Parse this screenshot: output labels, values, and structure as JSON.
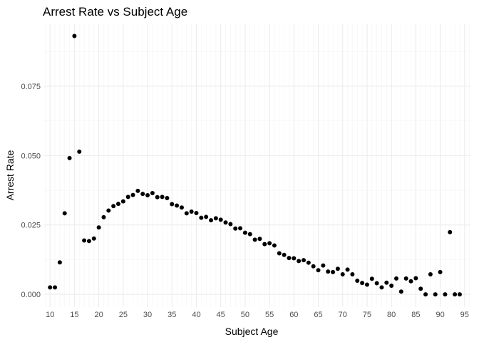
{
  "chart_data": {
    "type": "scatter",
    "title": "Arrest Rate vs Subject Age",
    "xlabel": "Subject Age",
    "ylabel": "Arrest Rate",
    "xlim": [
      8.8,
      96.2
    ],
    "ylim": [
      -0.0046,
      0.0976
    ],
    "x_ticks": [
      10,
      15,
      20,
      25,
      30,
      35,
      40,
      45,
      50,
      55,
      60,
      65,
      70,
      75,
      80,
      85,
      90,
      95
    ],
    "x_tick_labels": [
      "10",
      "15",
      "20",
      "25",
      "30",
      "35",
      "40",
      "45",
      "50",
      "55",
      "60",
      "65",
      "70",
      "75",
      "80",
      "85",
      "90",
      "95"
    ],
    "y_ticks": [
      0,
      0.025,
      0.05,
      0.075
    ],
    "y_tick_labels": [
      "0.000",
      "0.025",
      "0.050",
      "0.075"
    ],
    "grid": true,
    "point_color": "#000000",
    "points": [
      {
        "x": 10,
        "y": 0.0025
      },
      {
        "x": 11,
        "y": 0.0025
      },
      {
        "x": 12,
        "y": 0.0115
      },
      {
        "x": 13,
        "y": 0.0292
      },
      {
        "x": 14,
        "y": 0.0491
      },
      {
        "x": 15,
        "y": 0.0931
      },
      {
        "x": 16,
        "y": 0.0514
      },
      {
        "x": 17,
        "y": 0.0194
      },
      {
        "x": 18,
        "y": 0.0192
      },
      {
        "x": 19,
        "y": 0.0201
      },
      {
        "x": 20,
        "y": 0.0241
      },
      {
        "x": 21,
        "y": 0.0278
      },
      {
        "x": 22,
        "y": 0.0302
      },
      {
        "x": 23,
        "y": 0.0318
      },
      {
        "x": 24,
        "y": 0.0326
      },
      {
        "x": 25,
        "y": 0.0335
      },
      {
        "x": 26,
        "y": 0.0351
      },
      {
        "x": 27,
        "y": 0.0358
      },
      {
        "x": 28,
        "y": 0.0373
      },
      {
        "x": 29,
        "y": 0.0362
      },
      {
        "x": 30,
        "y": 0.0357
      },
      {
        "x": 31,
        "y": 0.0365
      },
      {
        "x": 32,
        "y": 0.035
      },
      {
        "x": 33,
        "y": 0.0351
      },
      {
        "x": 34,
        "y": 0.0347
      },
      {
        "x": 35,
        "y": 0.0325
      },
      {
        "x": 36,
        "y": 0.032
      },
      {
        "x": 37,
        "y": 0.0313
      },
      {
        "x": 38,
        "y": 0.0292
      },
      {
        "x": 39,
        "y": 0.0298
      },
      {
        "x": 40,
        "y": 0.0293
      },
      {
        "x": 41,
        "y": 0.0276
      },
      {
        "x": 42,
        "y": 0.0279
      },
      {
        "x": 43,
        "y": 0.0267
      },
      {
        "x": 44,
        "y": 0.0274
      },
      {
        "x": 45,
        "y": 0.0269
      },
      {
        "x": 46,
        "y": 0.0259
      },
      {
        "x": 47,
        "y": 0.0253
      },
      {
        "x": 48,
        "y": 0.0237
      },
      {
        "x": 49,
        "y": 0.0238
      },
      {
        "x": 50,
        "y": 0.0222
      },
      {
        "x": 51,
        "y": 0.0217
      },
      {
        "x": 52,
        "y": 0.0197
      },
      {
        "x": 53,
        "y": 0.02
      },
      {
        "x": 54,
        "y": 0.0181
      },
      {
        "x": 55,
        "y": 0.0184
      },
      {
        "x": 56,
        "y": 0.0176
      },
      {
        "x": 57,
        "y": 0.0148
      },
      {
        "x": 58,
        "y": 0.0142
      },
      {
        "x": 59,
        "y": 0.0131
      },
      {
        "x": 60,
        "y": 0.013
      },
      {
        "x": 61,
        "y": 0.012
      },
      {
        "x": 62,
        "y": 0.0123
      },
      {
        "x": 63,
        "y": 0.0114
      },
      {
        "x": 64,
        "y": 0.0101
      },
      {
        "x": 65,
        "y": 0.0087
      },
      {
        "x": 66,
        "y": 0.0104
      },
      {
        "x": 67,
        "y": 0.0082
      },
      {
        "x": 68,
        "y": 0.008
      },
      {
        "x": 69,
        "y": 0.0092
      },
      {
        "x": 70,
        "y": 0.0072
      },
      {
        "x": 71,
        "y": 0.0089
      },
      {
        "x": 72,
        "y": 0.0072
      },
      {
        "x": 73,
        "y": 0.0049
      },
      {
        "x": 74,
        "y": 0.0041
      },
      {
        "x": 75,
        "y": 0.0035
      },
      {
        "x": 76,
        "y": 0.0056
      },
      {
        "x": 77,
        "y": 0.004
      },
      {
        "x": 78,
        "y": 0.0025
      },
      {
        "x": 79,
        "y": 0.0042
      },
      {
        "x": 80,
        "y": 0.0031
      },
      {
        "x": 81,
        "y": 0.0057
      },
      {
        "x": 82,
        "y": 0.001
      },
      {
        "x": 83,
        "y": 0.0057
      },
      {
        "x": 84,
        "y": 0.0047
      },
      {
        "x": 85,
        "y": 0.0058
      },
      {
        "x": 86,
        "y": 0.002
      },
      {
        "x": 87,
        "y": 0.0
      },
      {
        "x": 88,
        "y": 0.0072
      },
      {
        "x": 89,
        "y": 0.0
      },
      {
        "x": 90,
        "y": 0.008
      },
      {
        "x": 91,
        "y": 0.0
      },
      {
        "x": 92,
        "y": 0.0224
      },
      {
        "x": 93,
        "y": 0.0
      },
      {
        "x": 94,
        "y": 0.0
      }
    ]
  }
}
